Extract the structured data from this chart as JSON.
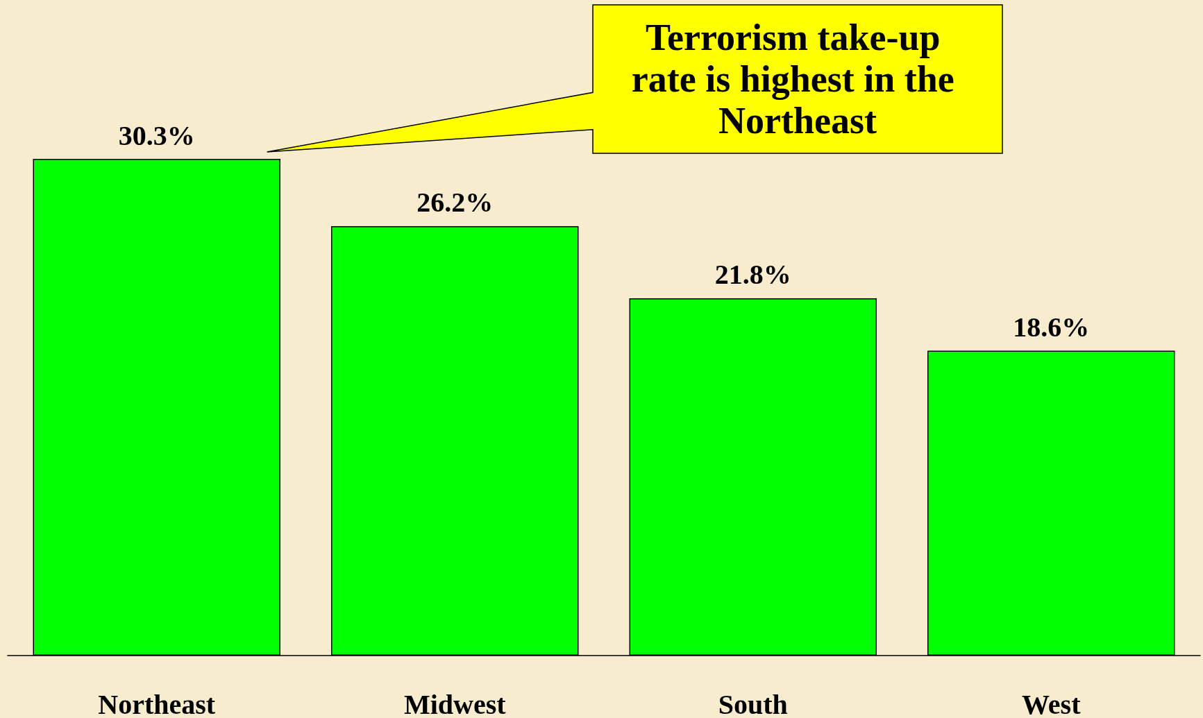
{
  "chart_data": {
    "type": "bar",
    "categories": [
      "Northeast",
      "Midwest",
      "South",
      "West"
    ],
    "values": [
      30.3,
      26.2,
      21.8,
      18.6
    ],
    "value_labels": [
      "30.3%",
      "26.2%",
      "21.8%",
      "18.6%"
    ],
    "color": "#00ff00",
    "annotations": [
      "Terrorism take-up rate is highest in the Northeast"
    ]
  }
}
